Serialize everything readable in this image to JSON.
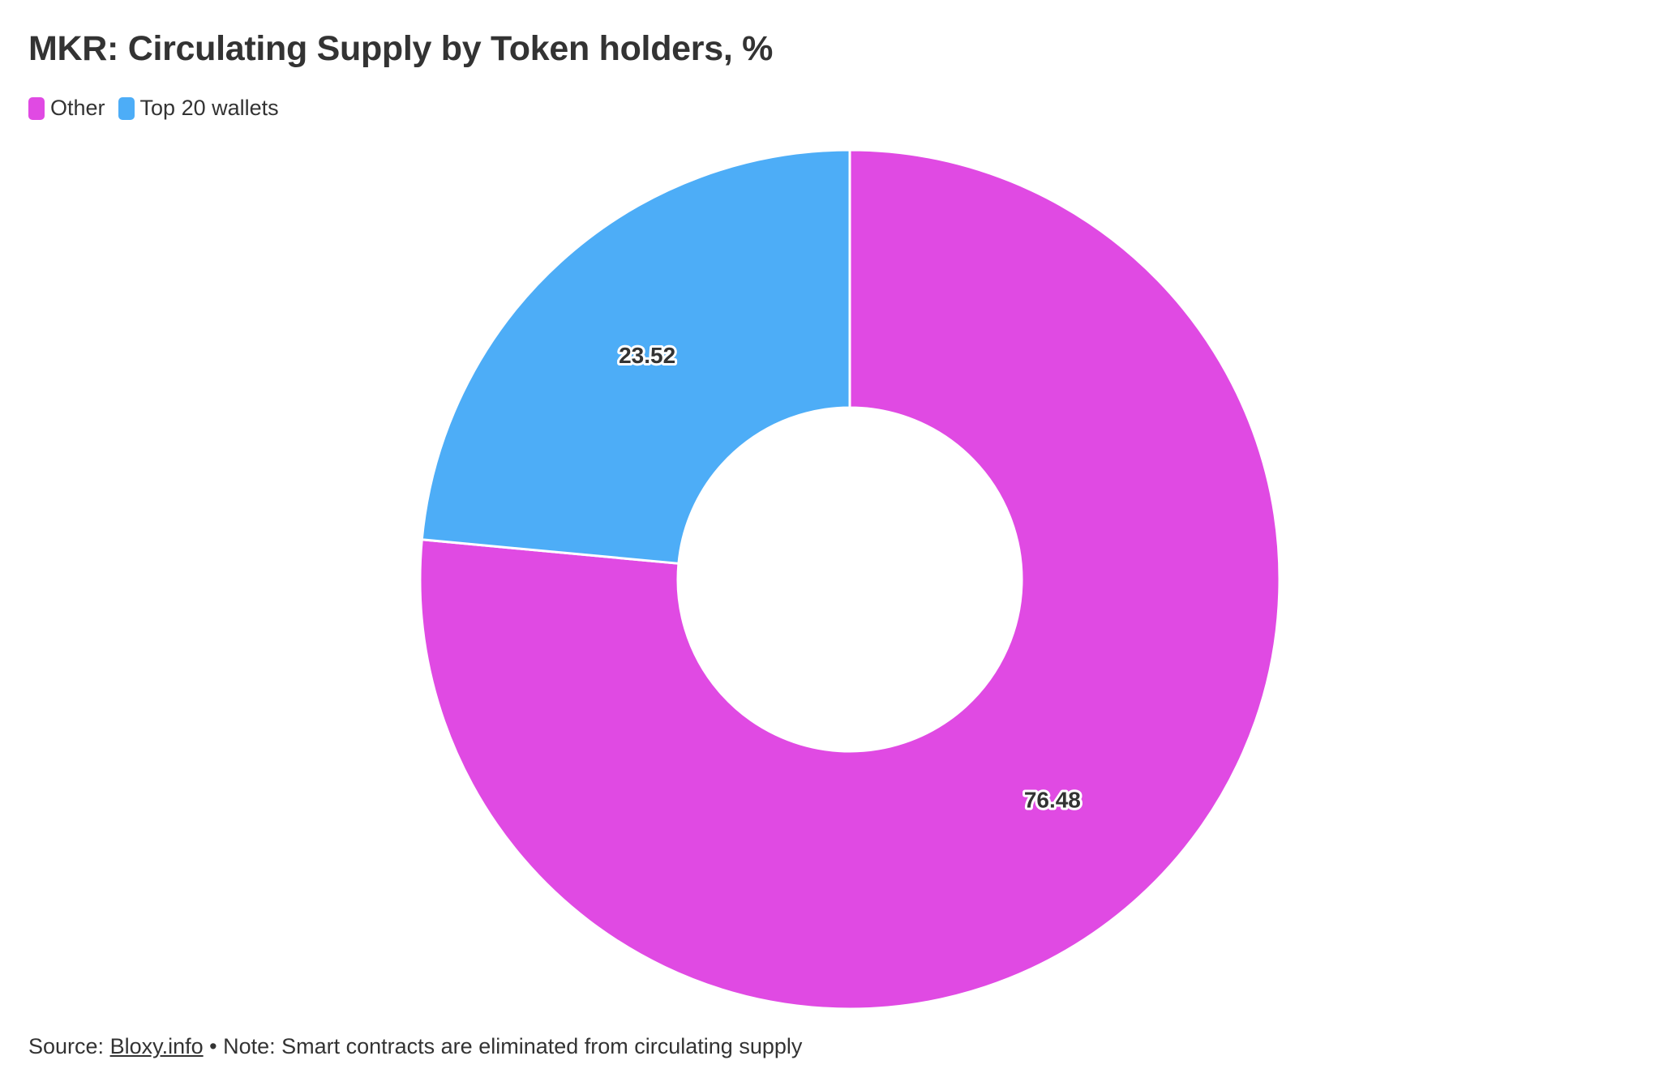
{
  "chart_data": {
    "type": "pie",
    "title": "MKR: Circulating Supply by Token holders, %",
    "categories": [
      "Other",
      "Top 20 wallets"
    ],
    "values": [
      76.48,
      23.52
    ],
    "data_labels": [
      "76.48",
      "23.52"
    ],
    "colors": [
      "#e04ae3",
      "#4dadf7"
    ],
    "donut": true,
    "legend": {
      "placement": "top-left",
      "items": [
        {
          "label": "Other",
          "color": "#e04ae3"
        },
        {
          "label": "Top 20 wallets",
          "color": "#4dadf7"
        }
      ]
    }
  },
  "footer": {
    "source_prefix": "Source:",
    "source_link": "Bloxy.info",
    "note": " • Note: Smart contracts are eliminated from circulating supply"
  }
}
